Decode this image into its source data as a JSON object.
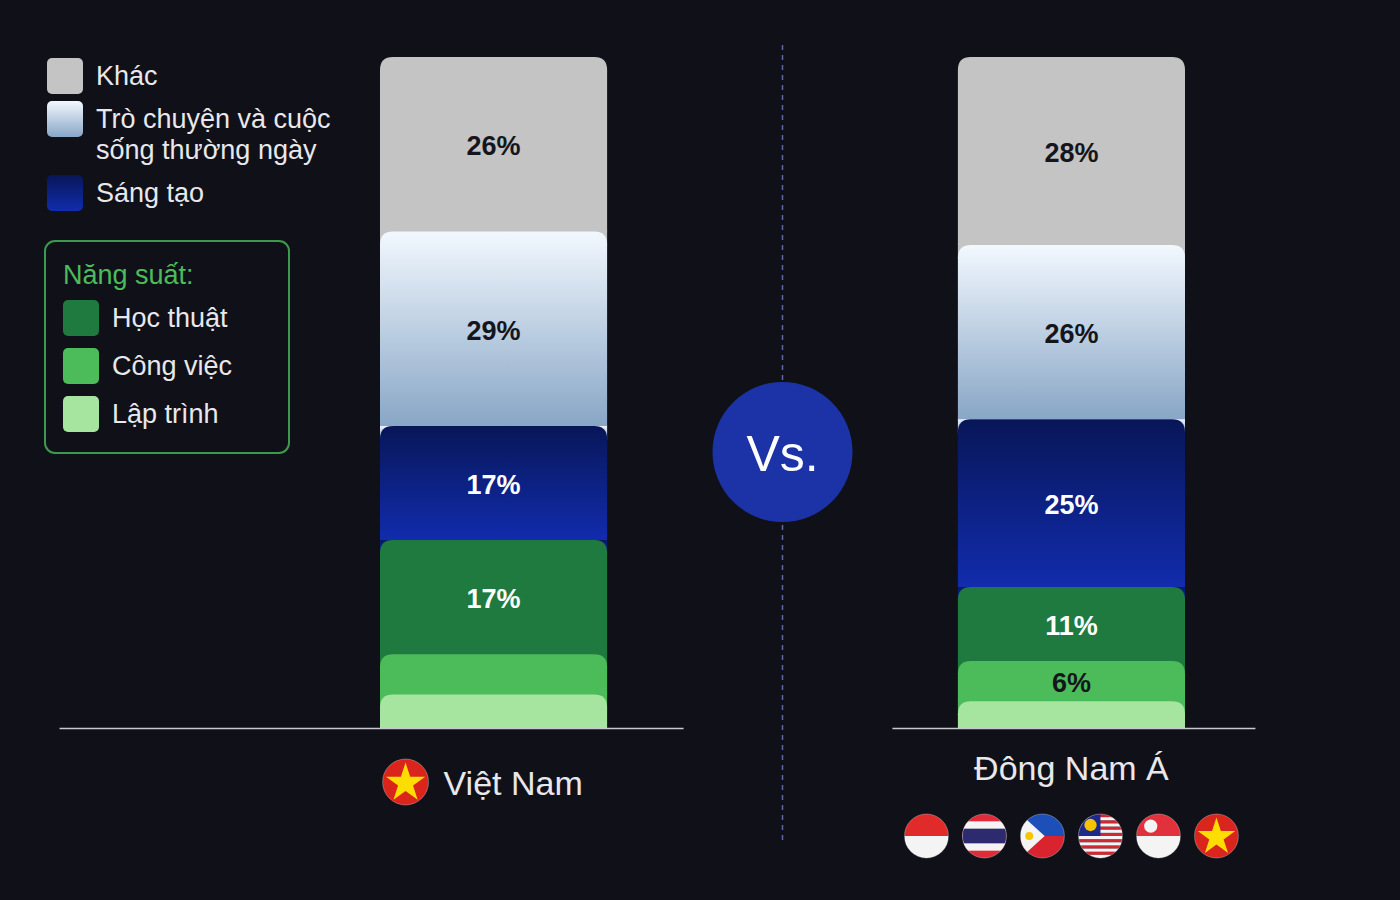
{
  "chart_data": {
    "type": "bar",
    "stacked": true,
    "data_labels": true,
    "tick_labels": false,
    "legend": "top-left",
    "categories": [
      "Việt Nam",
      "Đông Nam Á"
    ],
    "ylim": [
      0,
      100
    ],
    "annotations": [
      "Vs."
    ],
    "series": [
      {
        "name": "Khác",
        "color": "#c4c4c4",
        "values": [
          26,
          28
        ],
        "value_labels": [
          "26%",
          "28%"
        ]
      },
      {
        "name": "Trò chuyện và cuộc sống thường ngày",
        "color": "#a9cdf5",
        "values": [
          29,
          26
        ],
        "value_labels": [
          "29%",
          "26%"
        ]
      },
      {
        "name": "Sáng tạo",
        "color": "#0d2287",
        "values": [
          17,
          25
        ],
        "value_labels": [
          "17%",
          "25%"
        ]
      },
      {
        "name": "Học thuật",
        "color": "#1f7a3f",
        "group": "Năng suất:",
        "values": [
          17,
          11
        ],
        "value_labels": [
          "17%",
          "11%"
        ]
      },
      {
        "name": "Công việc",
        "color": "#4cbb5a",
        "group": "Năng suất:",
        "values": [
          6,
          6
        ],
        "value_labels": [
          null,
          "6%"
        ]
      },
      {
        "name": "Lập trình",
        "color": "#a5e59f",
        "group": "Năng suất:",
        "values": [
          5,
          4
        ],
        "value_labels": [
          null,
          null
        ]
      }
    ]
  }
}
